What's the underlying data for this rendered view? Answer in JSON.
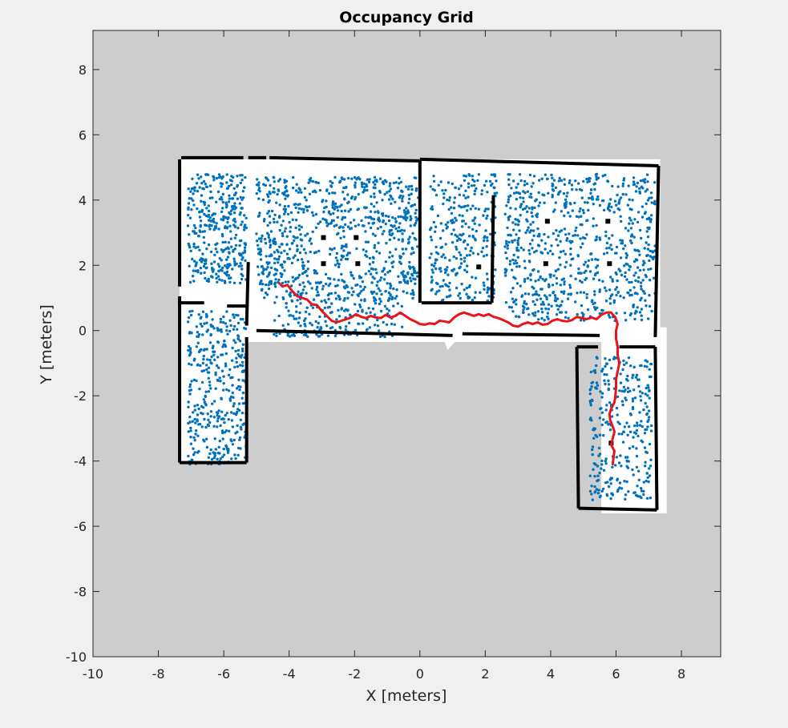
{
  "chart_data": {
    "type": "scatter",
    "title": "Occupancy Grid",
    "xlabel": "X [meters]",
    "ylabel": "Y [meters]",
    "xlim": [
      -10,
      9.2
    ],
    "ylim": [
      -10,
      9.2
    ],
    "xticks": [
      -10,
      -8,
      -6,
      -4,
      -2,
      0,
      2,
      4,
      6,
      8
    ],
    "yticks": [
      -10,
      -8,
      -6,
      -4,
      -2,
      0,
      2,
      4,
      6,
      8
    ],
    "grid": false,
    "colors": {
      "unknown": "#cdcdcd",
      "free": "#ffffff",
      "occupied": "#000000",
      "particles": "#0072bd",
      "path": "#e8141c",
      "axes": "#262626",
      "figure": "#f0f0f0"
    },
    "map": {
      "free_regions": [
        {
          "x": [
            -7.3,
            7.2
          ],
          "y": [
            5.1,
            5.1
          ],
          "poly": [
            [
              -7.3,
              5.1
            ],
            [
              7.2,
              5.1
            ],
            [
              7.2,
              -0.2
            ],
            [
              6.1,
              -0.2
            ],
            [
              6.1,
              -5.4
            ],
            [
              -5.4,
              -5.4
            ]
          ]
        }
      ]
    },
    "series": [
      {
        "type": "line",
        "points": [
          [
            -4.3,
            1.45
          ],
          [
            -4.2,
            1.35
          ],
          [
            -4.05,
            1.4
          ],
          [
            -3.9,
            1.2
          ],
          [
            -3.75,
            1.05
          ],
          [
            -3.6,
            1.0
          ],
          [
            -3.45,
            0.95
          ],
          [
            -3.3,
            0.8
          ],
          [
            -3.15,
            0.78
          ],
          [
            -3.0,
            0.6
          ],
          [
            -2.85,
            0.45
          ],
          [
            -2.7,
            0.3
          ],
          [
            -2.55,
            0.25
          ],
          [
            -2.4,
            0.3
          ],
          [
            -2.25,
            0.35
          ],
          [
            -2.1,
            0.4
          ],
          [
            -1.95,
            0.5
          ],
          [
            -1.8,
            0.42
          ],
          [
            -1.65,
            0.38
          ],
          [
            -1.5,
            0.45
          ],
          [
            -1.35,
            0.4
          ],
          [
            -1.2,
            0.38
          ],
          [
            -1.05,
            0.48
          ],
          [
            -0.9,
            0.4
          ],
          [
            -0.75,
            0.45
          ],
          [
            -0.6,
            0.55
          ],
          [
            -0.45,
            0.45
          ],
          [
            -0.3,
            0.35
          ],
          [
            -0.15,
            0.28
          ],
          [
            0.0,
            0.2
          ],
          [
            0.15,
            0.18
          ],
          [
            0.3,
            0.22
          ],
          [
            0.45,
            0.2
          ],
          [
            0.6,
            0.3
          ],
          [
            0.75,
            0.28
          ],
          [
            0.9,
            0.25
          ],
          [
            1.05,
            0.4
          ],
          [
            1.2,
            0.5
          ],
          [
            1.35,
            0.55
          ],
          [
            1.5,
            0.5
          ],
          [
            1.65,
            0.45
          ],
          [
            1.8,
            0.5
          ],
          [
            1.95,
            0.45
          ],
          [
            2.1,
            0.5
          ],
          [
            2.25,
            0.42
          ],
          [
            2.4,
            0.38
          ],
          [
            2.55,
            0.32
          ],
          [
            2.7,
            0.25
          ],
          [
            2.85,
            0.15
          ],
          [
            3.0,
            0.12
          ],
          [
            3.15,
            0.2
          ],
          [
            3.3,
            0.25
          ],
          [
            3.45,
            0.2
          ],
          [
            3.6,
            0.25
          ],
          [
            3.75,
            0.18
          ],
          [
            3.9,
            0.2
          ],
          [
            4.05,
            0.3
          ],
          [
            4.2,
            0.35
          ],
          [
            4.35,
            0.3
          ],
          [
            4.5,
            0.28
          ],
          [
            4.65,
            0.32
          ],
          [
            4.8,
            0.42
          ],
          [
            4.95,
            0.38
          ],
          [
            5.1,
            0.35
          ],
          [
            5.25,
            0.4
          ],
          [
            5.4,
            0.35
          ],
          [
            5.55,
            0.48
          ],
          [
            5.7,
            0.55
          ],
          [
            5.85,
            0.55
          ],
          [
            5.98,
            0.4
          ],
          [
            6.05,
            0.2
          ],
          [
            6.0,
            0.0
          ],
          [
            6.0,
            -0.25
          ],
          [
            6.05,
            -0.5
          ],
          [
            6.05,
            -0.75
          ],
          [
            6.1,
            -1.0
          ],
          [
            6.05,
            -1.25
          ],
          [
            6.0,
            -1.5
          ],
          [
            6.0,
            -1.75
          ],
          [
            5.98,
            -2.0
          ],
          [
            5.95,
            -2.2
          ],
          [
            5.85,
            -2.4
          ],
          [
            5.8,
            -2.55
          ],
          [
            5.82,
            -2.75
          ],
          [
            5.9,
            -2.95
          ],
          [
            5.95,
            -3.1
          ],
          [
            5.9,
            -3.3
          ],
          [
            5.85,
            -3.5
          ],
          [
            5.95,
            -3.7
          ],
          [
            5.92,
            -3.9
          ],
          [
            5.9,
            -4.1
          ]
        ]
      }
    ]
  }
}
